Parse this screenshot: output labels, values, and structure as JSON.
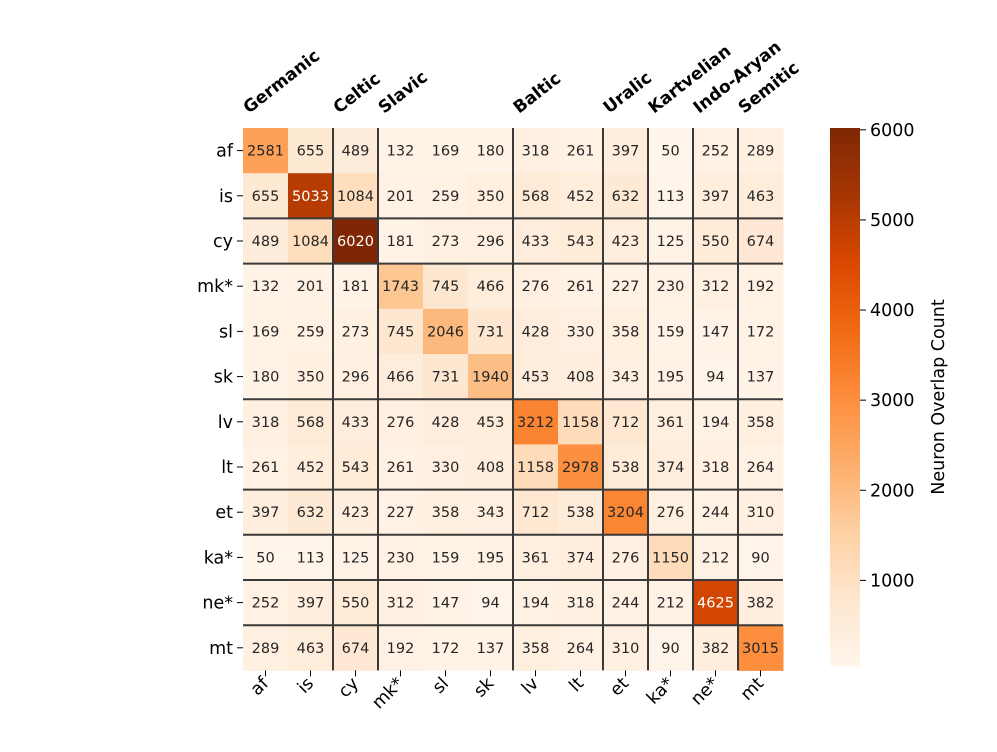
{
  "chart_data": {
    "type": "heatmap",
    "rows": [
      "af",
      "is",
      "cy",
      "mk*",
      "sl",
      "sk",
      "lv",
      "lt",
      "et",
      "ka*",
      "ne*",
      "mt"
    ],
    "columns": [
      "af",
      "is",
      "cy",
      "mk*",
      "sl",
      "sk",
      "lv",
      "lt",
      "et",
      "ka*",
      "ne*",
      "mt"
    ],
    "values": [
      [
        2581,
        655,
        489,
        132,
        169,
        180,
        318,
        261,
        397,
        50,
        252,
        289
      ],
      [
        655,
        5033,
        1084,
        201,
        259,
        350,
        568,
        452,
        632,
        113,
        397,
        463
      ],
      [
        489,
        1084,
        6020,
        181,
        273,
        296,
        433,
        543,
        423,
        125,
        550,
        674
      ],
      [
        132,
        201,
        181,
        1743,
        745,
        466,
        276,
        261,
        227,
        230,
        312,
        192
      ],
      [
        169,
        259,
        273,
        745,
        2046,
        731,
        428,
        330,
        358,
        159,
        147,
        172
      ],
      [
        180,
        350,
        296,
        466,
        731,
        1940,
        453,
        408,
        343,
        195,
        94,
        137
      ],
      [
        318,
        568,
        433,
        276,
        428,
        453,
        3212,
        1158,
        712,
        361,
        194,
        358
      ],
      [
        261,
        452,
        543,
        261,
        330,
        408,
        1158,
        2978,
        538,
        374,
        318,
        264
      ],
      [
        397,
        632,
        423,
        227,
        358,
        343,
        712,
        538,
        3204,
        276,
        244,
        310
      ],
      [
        50,
        113,
        125,
        230,
        159,
        195,
        361,
        374,
        276,
        1150,
        212,
        90
      ],
      [
        252,
        397,
        550,
        312,
        147,
        94,
        194,
        318,
        244,
        212,
        4625,
        382
      ],
      [
        289,
        463,
        674,
        192,
        172,
        137,
        358,
        264,
        310,
        90,
        382,
        3015
      ]
    ],
    "family_groups": [
      {
        "name": "Germanic",
        "start": 0,
        "end": 1
      },
      {
        "name": "Celtic",
        "start": 2,
        "end": 2
      },
      {
        "name": "Slavic",
        "start": 3,
        "end": 5
      },
      {
        "name": "Baltic",
        "start": 6,
        "end": 7
      },
      {
        "name": "Uralic",
        "start": 8,
        "end": 8
      },
      {
        "name": "Kartvelian",
        "start": 9,
        "end": 9
      },
      {
        "name": "Indo-Aryan",
        "start": 10,
        "end": 10
      },
      {
        "name": "Semitic",
        "start": 11,
        "end": 11
      }
    ],
    "group_boundaries": [
      2,
      3,
      6,
      8,
      9,
      10,
      11
    ],
    "colorbar": {
      "label": "Neuron Overlap Count",
      "min": 50,
      "max": 6020,
      "ticks": [
        1000,
        2000,
        3000,
        4000,
        5000,
        6000
      ],
      "colormap": "Oranges",
      "colors": [
        "#fff5eb",
        "#fee6ce",
        "#fdd0a2",
        "#fdae6b",
        "#fd8d3c",
        "#f16913",
        "#d94801",
        "#a63603",
        "#7f2704"
      ]
    },
    "title": "",
    "xlabel": "",
    "ylabel": ""
  }
}
